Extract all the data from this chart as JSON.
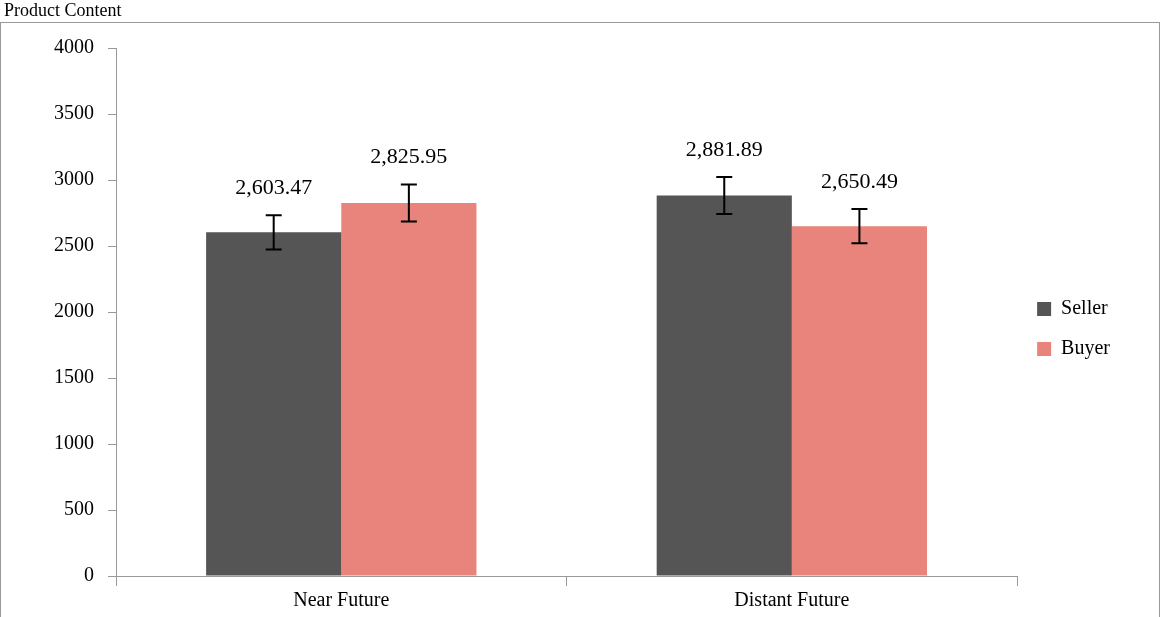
{
  "chart_data": {
    "type": "bar",
    "title": "Product Content",
    "categories": [
      "Near Future",
      "Distant Future"
    ],
    "series": [
      {
        "name": "Seller",
        "color": "#555555",
        "values": [
          2603.47,
          2881.89
        ],
        "errors": [
          130,
          140
        ],
        "value_labels": [
          "2,603.47",
          "2,881.89"
        ]
      },
      {
        "name": "Buyer",
        "color": "#e8847c",
        "values": [
          2825.95,
          2650.49
        ],
        "errors": [
          140,
          130
        ],
        "value_labels": [
          "2,825.95",
          "2,650.49"
        ]
      }
    ],
    "ylim": [
      0,
      4000
    ],
    "yticks": [
      0,
      500,
      1000,
      1500,
      2000,
      2500,
      3000,
      3500,
      4000
    ],
    "grid": false,
    "legend": "right"
  }
}
